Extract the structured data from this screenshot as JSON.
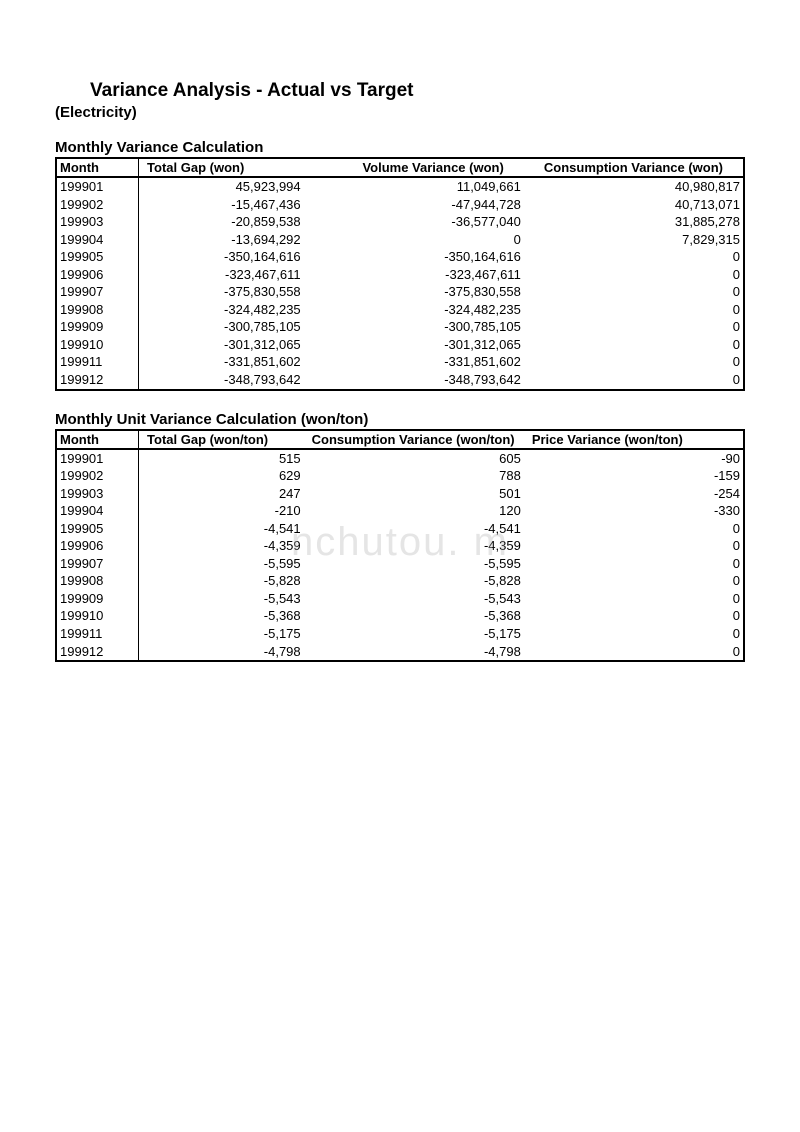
{
  "header": {
    "title": "Variance Analysis - Actual vs Target",
    "subtitle": "(Electricity)"
  },
  "watermark": "nchutou.   m",
  "table1": {
    "title": "Monthly Variance Calculation",
    "columns": [
      "Month",
      "Total Gap (won)",
      "Volume Variance (won)",
      "Consumption Variance (won)"
    ],
    "col_widths": [
      "12%",
      "24%",
      "32%",
      "32%"
    ],
    "header_align": [
      "left",
      "left",
      "right",
      "right"
    ],
    "rows": [
      [
        "199901",
        "45,923,994",
        "11,049,661",
        "40,980,817"
      ],
      [
        "199902",
        "-15,467,436",
        "-47,944,728",
        "40,713,071"
      ],
      [
        "199903",
        "-20,859,538",
        "-36,577,040",
        "31,885,278"
      ],
      [
        "199904",
        "-13,694,292",
        "0",
        "7,829,315"
      ],
      [
        "199905",
        "-350,164,616",
        "-350,164,616",
        "0"
      ],
      [
        "199906",
        "-323,467,611",
        "-323,467,611",
        "0"
      ],
      [
        "199907",
        "-375,830,558",
        "-375,830,558",
        "0"
      ],
      [
        "199908",
        "-324,482,235",
        "-324,482,235",
        "0"
      ],
      [
        "199909",
        "-300,785,105",
        "-300,785,105",
        "0"
      ],
      [
        "199910",
        "-301,312,065",
        "-301,312,065",
        "0"
      ],
      [
        "199911",
        "-331,851,602",
        "-331,851,602",
        "0"
      ],
      [
        "199912",
        "-348,793,642",
        "-348,793,642",
        "0"
      ]
    ]
  },
  "table2": {
    "title": "Monthly Unit Variance Calculation (won/ton)",
    "columns": [
      "Month",
      "Total Gap (won/ton)",
      "Consumption Variance (won/ton)",
      "Price Variance (won/ton)"
    ],
    "col_widths": [
      "12%",
      "24%",
      "32%",
      "32%"
    ],
    "header_align": [
      "left",
      "left",
      "left",
      "left"
    ],
    "rows": [
      [
        "199901",
        "515",
        "605",
        "-90"
      ],
      [
        "199902",
        "629",
        "788",
        "-159"
      ],
      [
        "199903",
        "247",
        "501",
        "-254"
      ],
      [
        "199904",
        "-210",
        "120",
        "-330"
      ],
      [
        "199905",
        "-4,541",
        "-4,541",
        "0"
      ],
      [
        "199906",
        "-4,359",
        "-4,359",
        "0"
      ],
      [
        "199907",
        "-5,595",
        "-5,595",
        "0"
      ],
      [
        "199908",
        "-5,828",
        "-5,828",
        "0"
      ],
      [
        "199909",
        "-5,543",
        "-5,543",
        "0"
      ],
      [
        "199910",
        "-5,368",
        "-5,368",
        "0"
      ],
      [
        "199911",
        "-5,175",
        "-5,175",
        "0"
      ],
      [
        "199912",
        "-4,798",
        "-4,798",
        "0"
      ]
    ]
  }
}
